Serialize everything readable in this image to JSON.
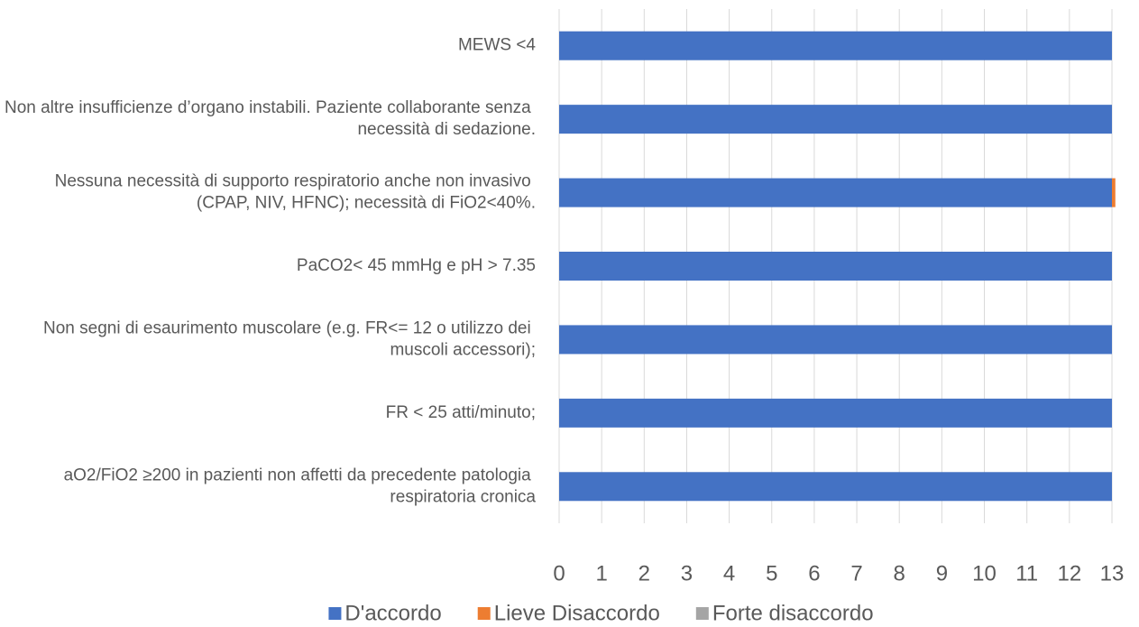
{
  "chart_data": {
    "type": "stacked_barh",
    "categories": [
      "MEWS <4",
      "Non altre insufficienze d’organo instabili. Paziente collaborante senza necessità di sedazione.",
      "Nessuna necessità di supporto respiratorio anche non invasivo (CPAP, NIV, HFNC); necessità di FiO2<40%.",
      "PaCO2< 45 mmHg e pH > 7.35",
      "Non segni di esaurimento muscolare (e.g. FR<= 12 o utilizzo dei muscoli accessori);",
      "FR < 25 atti/minuto;",
      "aO2/FiO2 ≥200 in pazienti non affetti da precedente patologia respiratoria cronica"
    ],
    "series": [
      {
        "name": "D'accordo",
        "color": "#4472c4",
        "values": [
          13,
          13,
          13,
          13,
          13,
          13,
          13
        ]
      },
      {
        "name": "Lieve Disaccordo",
        "color": "#ed7d31",
        "values": [
          0,
          0,
          0.08,
          0,
          0,
          0,
          0
        ]
      },
      {
        "name": "Forte disaccordo",
        "color": "#a5a5a5",
        "values": [
          0,
          0,
          0,
          0,
          0,
          0,
          0
        ]
      }
    ],
    "xlim": [
      0,
      13
    ],
    "xticks": [
      0,
      1,
      2,
      3,
      4,
      5,
      6,
      7,
      8,
      9,
      10,
      11,
      12,
      13
    ],
    "grid": true,
    "legend": "bottom"
  }
}
